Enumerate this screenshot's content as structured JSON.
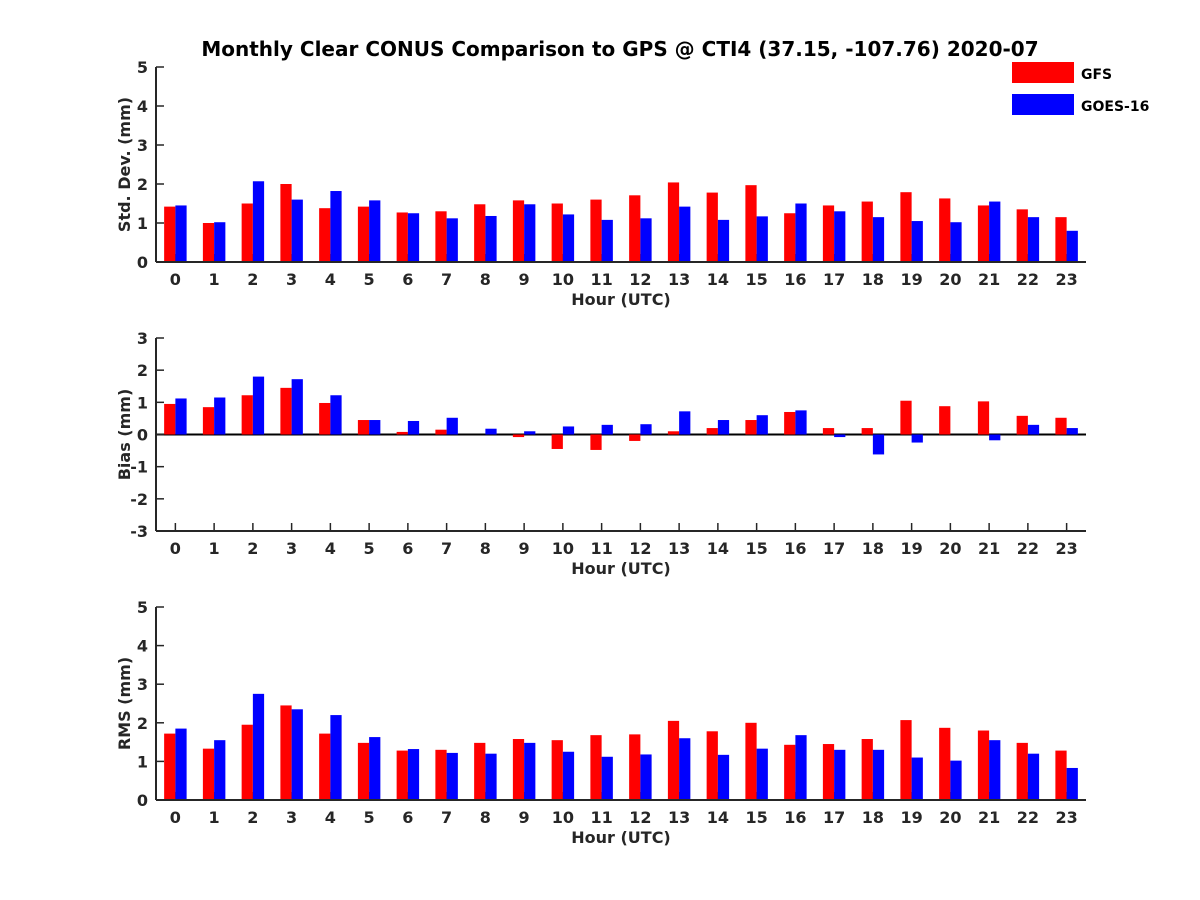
{
  "title": "Monthly Clear CONUS Comparison to GPS @ CTI4 (37.15, -107.76) 2020-07",
  "legend": [
    {
      "label": "GFS",
      "color": "#ff0000"
    },
    {
      "label": "GOES-16",
      "color": "#0000ff"
    }
  ],
  "chart_data": [
    {
      "type": "bar",
      "xlabel": "Hour (UTC)",
      "ylabel": "Std. Dev. (mm)",
      "ylim": [
        0,
        5
      ],
      "yticks": [
        0,
        1,
        2,
        3,
        4,
        5
      ],
      "categories": [
        "0",
        "1",
        "2",
        "3",
        "4",
        "5",
        "6",
        "7",
        "8",
        "9",
        "10",
        "11",
        "12",
        "13",
        "14",
        "15",
        "16",
        "17",
        "18",
        "19",
        "20",
        "21",
        "22",
        "23"
      ],
      "series": [
        {
          "name": "GFS",
          "color": "#ff0000",
          "values": [
            1.42,
            1.0,
            1.5,
            2.0,
            1.38,
            1.42,
            1.27,
            1.3,
            1.48,
            1.58,
            1.5,
            1.6,
            1.71,
            2.04,
            1.78,
            1.97,
            1.25,
            1.45,
            1.55,
            1.79,
            1.63,
            1.45,
            1.35,
            1.15
          ]
        },
        {
          "name": "GOES-16",
          "color": "#0000ff",
          "values": [
            1.45,
            1.02,
            2.07,
            1.6,
            1.82,
            1.58,
            1.25,
            1.12,
            1.18,
            1.48,
            1.22,
            1.08,
            1.12,
            1.42,
            1.08,
            1.17,
            1.5,
            1.3,
            1.15,
            1.05,
            1.02,
            1.55,
            1.15,
            0.8
          ]
        }
      ]
    },
    {
      "type": "bar",
      "xlabel": "Hour (UTC)",
      "ylabel": "Bias (mm)",
      "ylim": [
        -3,
        3
      ],
      "yticks": [
        -3,
        -2,
        -1,
        0,
        1,
        2,
        3
      ],
      "categories": [
        "0",
        "1",
        "2",
        "3",
        "4",
        "5",
        "6",
        "7",
        "8",
        "9",
        "10",
        "11",
        "12",
        "13",
        "14",
        "15",
        "16",
        "17",
        "18",
        "19",
        "20",
        "21",
        "22",
        "23"
      ],
      "series": [
        {
          "name": "GFS",
          "color": "#ff0000",
          "values": [
            0.95,
            0.85,
            1.22,
            1.45,
            0.98,
            0.45,
            0.08,
            0.15,
            0.0,
            -0.08,
            -0.45,
            -0.48,
            -0.2,
            0.1,
            0.2,
            0.45,
            0.7,
            0.2,
            0.2,
            1.05,
            0.88,
            1.03,
            0.58,
            0.52
          ]
        },
        {
          "name": "GOES-16",
          "color": "#0000ff",
          "values": [
            1.12,
            1.15,
            1.8,
            1.72,
            1.22,
            0.45,
            0.42,
            0.52,
            0.18,
            0.1,
            0.25,
            0.3,
            0.32,
            0.72,
            0.45,
            0.6,
            0.75,
            -0.08,
            -0.62,
            -0.25,
            0.0,
            -0.18,
            0.3,
            0.2
          ]
        }
      ]
    },
    {
      "type": "bar",
      "xlabel": "Hour (UTC)",
      "ylabel": "RMS (mm)",
      "ylim": [
        0,
        5
      ],
      "yticks": [
        0,
        1,
        2,
        3,
        4,
        5
      ],
      "categories": [
        "0",
        "1",
        "2",
        "3",
        "4",
        "5",
        "6",
        "7",
        "8",
        "9",
        "10",
        "11",
        "12",
        "13",
        "14",
        "15",
        "16",
        "17",
        "18",
        "19",
        "20",
        "21",
        "22",
        "23"
      ],
      "series": [
        {
          "name": "GFS",
          "color": "#ff0000",
          "values": [
            1.72,
            1.33,
            1.95,
            2.45,
            1.72,
            1.48,
            1.28,
            1.3,
            1.48,
            1.58,
            1.55,
            1.68,
            1.7,
            2.05,
            1.78,
            2.0,
            1.43,
            1.45,
            1.58,
            2.07,
            1.87,
            1.8,
            1.48,
            1.28
          ]
        },
        {
          "name": "GOES-16",
          "color": "#0000ff",
          "values": [
            1.85,
            1.55,
            2.75,
            2.35,
            2.2,
            1.63,
            1.32,
            1.22,
            1.2,
            1.48,
            1.25,
            1.12,
            1.18,
            1.6,
            1.17,
            1.33,
            1.68,
            1.3,
            1.3,
            1.1,
            1.02,
            1.55,
            1.2,
            0.83
          ]
        }
      ]
    }
  ]
}
